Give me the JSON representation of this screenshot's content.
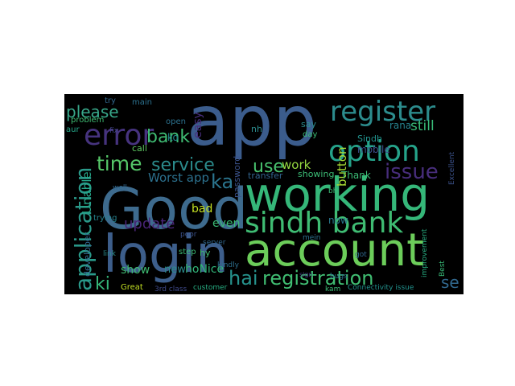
{
  "words": [
    "app",
    "Good",
    "working",
    "login",
    "account",
    "sindh bank",
    "register",
    "error",
    "option",
    "application",
    "issue",
    "time",
    "service",
    "bank",
    "please",
    "use",
    "hai",
    "registration",
    "update",
    "work",
    "still",
    "Worst app",
    "Unable",
    "button",
    "ka",
    "ki",
    "show",
    "new",
    "hoNice",
    "bad",
    "even",
    "easy",
    "se",
    "Thank",
    "now",
    "mobile",
    "rana",
    "nh",
    "say",
    "day",
    "password",
    "transfer",
    "showing",
    "call",
    "main",
    "problem",
    "aur",
    "try",
    "fix",
    "ko",
    "open",
    "Great",
    "customer",
    "3rd class",
    "Connectivity issue",
    "kam",
    "Best",
    "kindly",
    "developer",
    "step",
    "hy",
    "poor",
    "server",
    "trying",
    "bhi",
    "bugs",
    "improvement",
    "Sindh",
    "Excellent",
    "mein",
    "sign",
    "link",
    "well",
    "got"
  ]
}
